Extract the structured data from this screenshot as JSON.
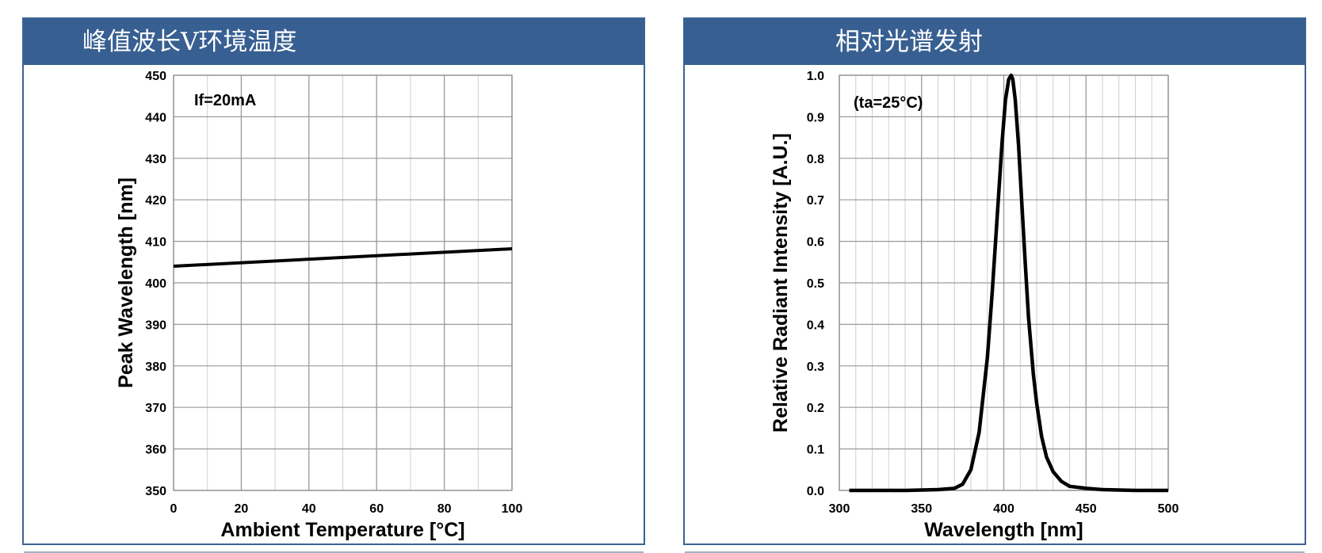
{
  "panels": {
    "left_title": "峰值波长V环境温度",
    "right_title": "相对光谱发射"
  },
  "colors": {
    "header_bg": "#375f91",
    "border": "#3a6494",
    "grid": "#b8b8b8",
    "line": "#000000"
  },
  "chart_data": [
    {
      "type": "line",
      "title": "峰值波长V环境温度",
      "xlabel": "Ambient Temperature [°C]",
      "ylabel": "Peak Wavelength [nm]",
      "annotation": "If=20mA",
      "xlim": [
        0,
        100
      ],
      "ylim": [
        350,
        450
      ],
      "xticks": [
        "0",
        "20",
        "40",
        "60",
        "80",
        "100"
      ],
      "yticks": [
        "350",
        "360",
        "370",
        "380",
        "390",
        "400",
        "410",
        "420",
        "430",
        "440",
        "450"
      ],
      "grid": true,
      "series": [
        {
          "x": [
            0,
            100
          ],
          "y": [
            404,
            408.2
          ]
        }
      ]
    },
    {
      "type": "line",
      "title": "相对光谱发射",
      "xlabel": "Wavelength [nm]",
      "ylabel": "Relative Radiant Intensity [A.U.]",
      "annotation": "(ta=25°C)",
      "xlim": [
        300,
        500
      ],
      "ylim": [
        0.0,
        1.0
      ],
      "xticks": [
        "300",
        "350",
        "400",
        "450",
        "500"
      ],
      "yticks": [
        "0.0",
        "0.1",
        "0.2",
        "0.3",
        "0.4",
        "0.5",
        "0.6",
        "0.7",
        "0.8",
        "0.9",
        "1.0"
      ],
      "grid": true,
      "series": [
        {
          "x": [
            306,
            340,
            360,
            370,
            375,
            380,
            385,
            390,
            393,
            396,
            399,
            401,
            403,
            404.5,
            405.5,
            407,
            409,
            411,
            413,
            415,
            418,
            420,
            423,
            426,
            430,
            435,
            440,
            450,
            460,
            470,
            480,
            490,
            500
          ],
          "y": [
            0.0,
            0.0,
            0.002,
            0.005,
            0.015,
            0.05,
            0.14,
            0.32,
            0.48,
            0.66,
            0.84,
            0.94,
            0.99,
            1.0,
            0.99,
            0.94,
            0.83,
            0.69,
            0.55,
            0.42,
            0.28,
            0.21,
            0.13,
            0.08,
            0.045,
            0.022,
            0.01,
            0.005,
            0.002,
            0.001,
            0.0,
            0.0,
            0.0
          ]
        }
      ]
    }
  ]
}
